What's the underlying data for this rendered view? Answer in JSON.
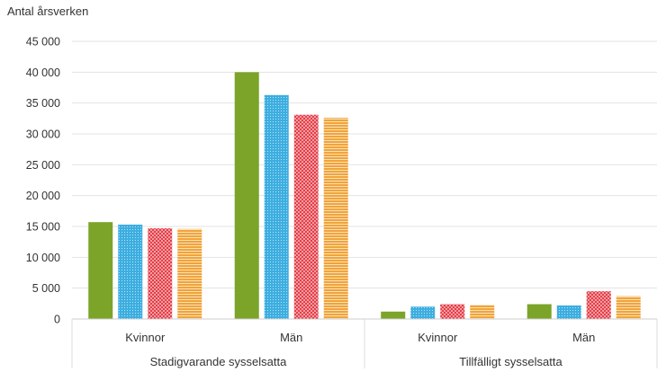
{
  "chart_data": {
    "type": "bar",
    "ylabel": "Antal årsverken",
    "ylim": [
      0,
      45000
    ],
    "yticks": [
      0,
      5000,
      10000,
      15000,
      20000,
      25000,
      30000,
      35000,
      40000,
      45000
    ],
    "ytick_labels": [
      "0",
      "5 000",
      "10 000",
      "15 000",
      "20 000",
      "25 000",
      "30 000",
      "35 000",
      "40 000",
      "45 000"
    ],
    "groups": [
      {
        "label": "Stadigvarande sysselsatta",
        "categories": [
          "Kvinnor",
          "Män"
        ]
      },
      {
        "label": "Tillfälligt sysselsatta",
        "categories": [
          "Kvinnor",
          "Män"
        ]
      }
    ],
    "categories": [
      "Kvinnor",
      "Män",
      "Kvinnor",
      "Män"
    ],
    "series": [
      {
        "color": "#7ba428",
        "pattern": "solid",
        "values": [
          15700,
          40000,
          1200,
          2400
        ]
      },
      {
        "color": "#3daee0",
        "pattern": "dots",
        "values": [
          15300,
          36300,
          2000,
          2200
        ]
      },
      {
        "color": "#e2242f",
        "pattern": "cross",
        "values": [
          14700,
          33100,
          2400,
          4500
        ]
      },
      {
        "color": "#f0a43a",
        "pattern": "hlines",
        "values": [
          14600,
          32600,
          2300,
          3700
        ]
      }
    ],
    "grid": true,
    "legend": "none"
  }
}
